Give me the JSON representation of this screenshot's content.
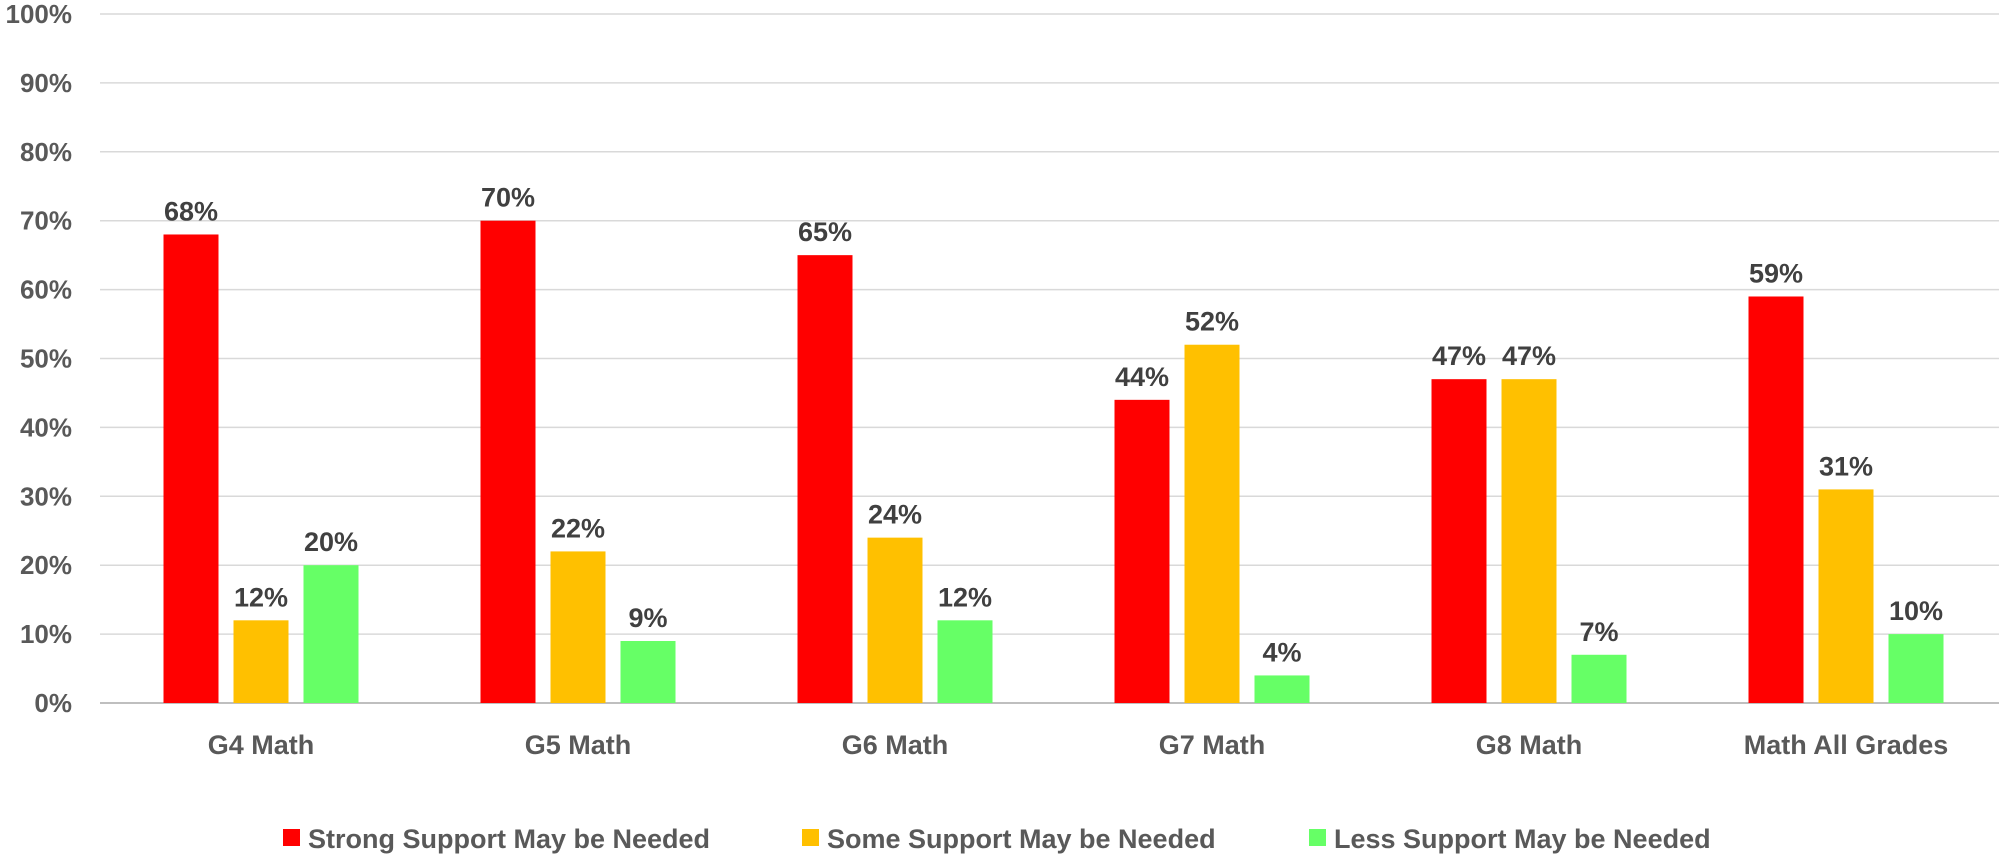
{
  "chart_data": {
    "type": "bar",
    "categories": [
      "G4 Math",
      "G5 Math",
      "G6 Math",
      "G7 Math",
      "G8 Math",
      "Math All Grades"
    ],
    "series": [
      {
        "name": "Strong Support May be Needed",
        "color": "#ff0000",
        "values": [
          68,
          70,
          65,
          44,
          47,
          59
        ],
        "labels": [
          "68%",
          "70%",
          "65%",
          "44%",
          "47%",
          "59%"
        ]
      },
      {
        "name": "Some Support May be Needed",
        "color": "#ffc000",
        "values": [
          12,
          22,
          24,
          52,
          47,
          31
        ],
        "labels": [
          "12%",
          "22%",
          "24%",
          "52%",
          "47%",
          "31%"
        ]
      },
      {
        "name": "Less Support May be Needed",
        "color": "#66ff66",
        "values": [
          20,
          9,
          12,
          4,
          7,
          10
        ],
        "labels": [
          "20%",
          "9%",
          "12%",
          "4%",
          "7%",
          "10%"
        ]
      }
    ],
    "ylim": [
      0,
      100
    ],
    "yticks": [
      "0%",
      "10%",
      "20%",
      "30%",
      "40%",
      "50%",
      "60%",
      "70%",
      "80%",
      "90%",
      "100%"
    ],
    "grid": true,
    "legend": "bottom",
    "title": "",
    "xlabel": "",
    "ylabel": ""
  }
}
